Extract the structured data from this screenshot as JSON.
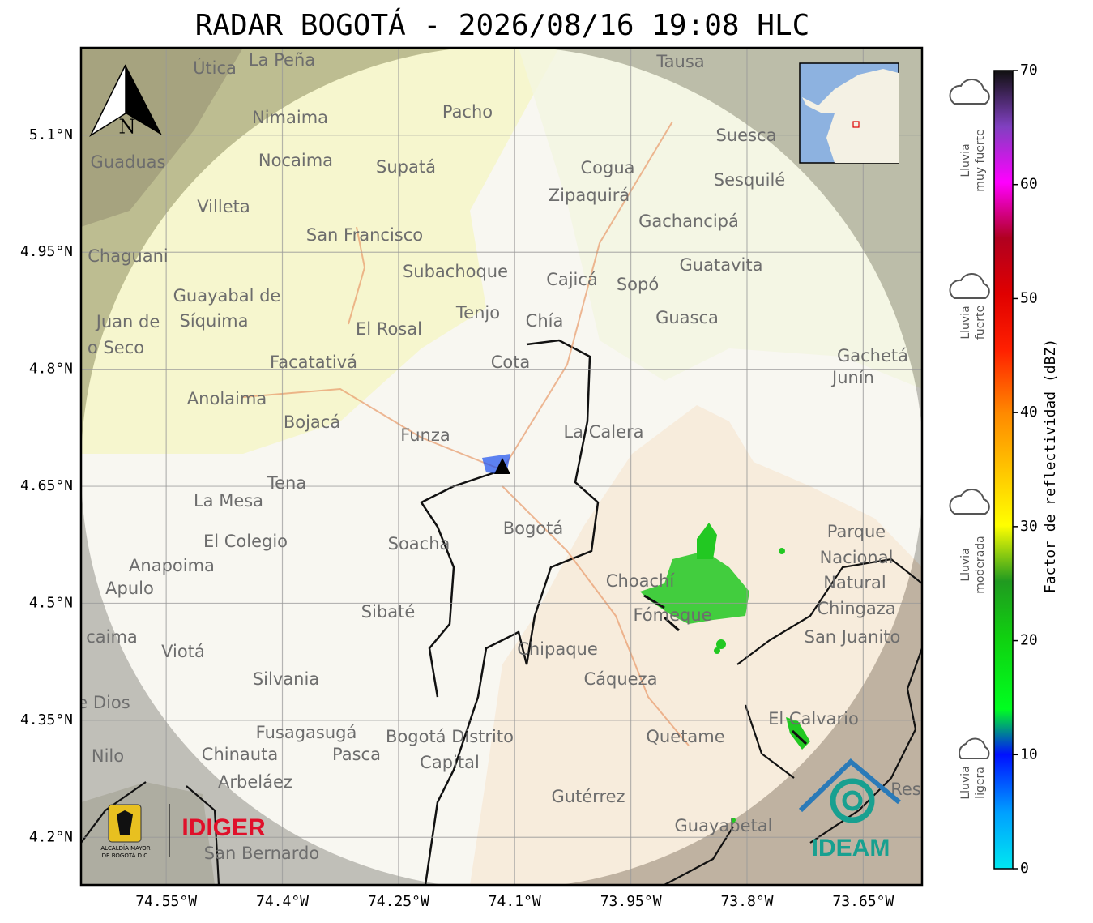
{
  "title": "RADAR BOGOTÁ - 2026/08/16 19:08 HLC",
  "map": {
    "lon_range": [
      -74.66,
      -73.574
    ],
    "lat_range": [
      4.139,
      5.212
    ],
    "lat_ticks": [
      {
        "value": 5.1,
        "label": "5.1°N"
      },
      {
        "value": 4.95,
        "label": "4.95°N"
      },
      {
        "value": 4.8,
        "label": "4.8°N"
      },
      {
        "value": 4.65,
        "label": "4.65°N"
      },
      {
        "value": 4.5,
        "label": "4.5°N"
      },
      {
        "value": 4.35,
        "label": "4.35°N"
      },
      {
        "value": 4.2,
        "label": "4.2°N"
      }
    ],
    "lon_ticks": [
      {
        "value": -74.55,
        "label": "74.55°W"
      },
      {
        "value": -74.4,
        "label": "74.4°W"
      },
      {
        "value": -74.25,
        "label": "74.25°W"
      },
      {
        "value": -74.1,
        "label": "74.1°W"
      },
      {
        "value": -73.95,
        "label": "73.95°W"
      },
      {
        "value": -73.8,
        "label": "73.8°W"
      },
      {
        "value": -73.65,
        "label": "73.65°W"
      }
    ],
    "places": [
      "Útica",
      "La Peña",
      "Tausa",
      "Pacho",
      "Nimaima",
      "Suesca",
      "Guaduas",
      "Nocaima",
      "Supatá",
      "Cogua",
      "Sesquilé",
      "Zipaquirá",
      "Villeta",
      "Gachancipá",
      "San Francisco",
      "Chaguani",
      "Guatavita",
      "Subachoque",
      "Cajicá",
      "Sopó",
      "Guayabal de",
      "Síquima",
      "Tenjo",
      "Chía",
      "Guasca",
      "Juan de",
      "o Seco",
      "Gachetá",
      "Junín",
      "Facatativá",
      "El Rosal",
      "Cota",
      "Anolaima",
      "Bojacá",
      "Funza",
      "La Calera",
      "Tena",
      "La Mesa",
      "Bogotá",
      "Parque",
      "El Colegio",
      "Soacha",
      "Nacional",
      "Anapoima",
      "Apulo",
      "Natural",
      "Choachí",
      "Chingaza",
      "Fómeque",
      "Sibaté",
      "San Juanito",
      "caima",
      "Viotá",
      "Chipaque",
      "Cáqueza",
      "Silvania",
      "e Dios",
      "El Calvario",
      "Fusagasugá",
      "Bogotá Distrito",
      "Quetame",
      "Nilo",
      "Chinauta",
      "Pasca",
      "Capital",
      "Arbeláez",
      "Res",
      "Gutérrez",
      "Guayabetal",
      "San Bernardo"
    ],
    "north": "N"
  },
  "logos": {
    "idiger": "IDIGER",
    "alcaldia": [
      "ALCALDÍA MAYOR",
      "DE BOGOTÁ D.C."
    ],
    "ideam": "IDEAM"
  },
  "colorbar": {
    "label": "Factor de reflectividad (dBZ)",
    "range": [
      0,
      70
    ],
    "ticks": [
      0,
      10,
      20,
      30,
      40,
      50,
      60,
      70
    ]
  },
  "intensity": [
    [
      "Lluvia",
      "muy fuerte"
    ],
    [
      "Lluvia",
      "fuerte"
    ],
    [
      "Lluvia",
      "moderada"
    ],
    [
      "Lluvia",
      "ligera"
    ]
  ]
}
